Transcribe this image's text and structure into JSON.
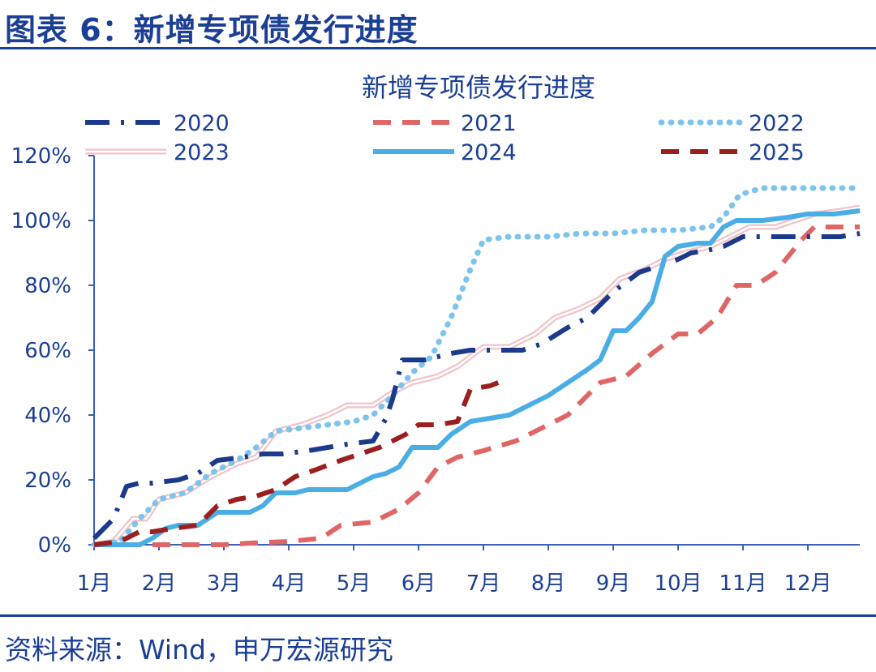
{
  "figure": {
    "title": "图表 6：新增专项债发行进度",
    "source": "资料来源：Wind，申万宏源研究"
  },
  "chart_data": {
    "type": "line",
    "title": "新增专项债发行进度",
    "xlabel": "",
    "ylabel": "",
    "x_ticks": [
      "1月",
      "2月",
      "3月",
      "4月",
      "5月",
      "6月",
      "7月",
      "8月",
      "9月",
      "10月",
      "11月",
      "12月"
    ],
    "xlim": [
      1,
      12.8
    ],
    "y_ticks": [
      "0%",
      "20%",
      "40%",
      "60%",
      "80%",
      "100%",
      "120%"
    ],
    "ylim": [
      0,
      120
    ],
    "grid": false,
    "legend_position": "top",
    "series": [
      {
        "name": "2020",
        "color": "#1b3a8c",
        "style": "dashdot",
        "points": [
          [
            1.0,
            2
          ],
          [
            1.3,
            8
          ],
          [
            1.5,
            18
          ],
          [
            1.7,
            19
          ],
          [
            1.9,
            19
          ],
          [
            2.3,
            20
          ],
          [
            2.6,
            22
          ],
          [
            2.9,
            26
          ],
          [
            3.3,
            27
          ],
          [
            3.6,
            28
          ],
          [
            3.9,
            28
          ],
          [
            4.3,
            29
          ],
          [
            4.6,
            30
          ],
          [
            4.9,
            31
          ],
          [
            5.3,
            32
          ],
          [
            5.5,
            39
          ],
          [
            5.6,
            45
          ],
          [
            5.75,
            57
          ],
          [
            6.1,
            57
          ],
          [
            6.5,
            59
          ],
          [
            6.8,
            60
          ],
          [
            7.2,
            60
          ],
          [
            7.6,
            60
          ],
          [
            7.9,
            62
          ],
          [
            8.3,
            67
          ],
          [
            8.6,
            70
          ],
          [
            9.0,
            78
          ],
          [
            9.4,
            84
          ],
          [
            9.7,
            86
          ],
          [
            10.0,
            88
          ],
          [
            10.2,
            90
          ],
          [
            10.5,
            91
          ],
          [
            10.7,
            92
          ],
          [
            11.0,
            95
          ],
          [
            11.3,
            95
          ],
          [
            11.6,
            95
          ],
          [
            11.9,
            95
          ],
          [
            12.2,
            95
          ],
          [
            12.5,
            95
          ],
          [
            12.8,
            96
          ]
        ]
      },
      {
        "name": "2021",
        "color": "#e06666",
        "style": "dashed",
        "points": [
          [
            1.0,
            0
          ],
          [
            2.0,
            0
          ],
          [
            3.0,
            0
          ],
          [
            3.4,
            0.5
          ],
          [
            4.0,
            1
          ],
          [
            4.5,
            2
          ],
          [
            4.8,
            6
          ],
          [
            5.3,
            7
          ],
          [
            5.7,
            11
          ],
          [
            6.0,
            16
          ],
          [
            6.3,
            24
          ],
          [
            6.6,
            27
          ],
          [
            7.0,
            29
          ],
          [
            7.5,
            32
          ],
          [
            7.9,
            36
          ],
          [
            8.3,
            40
          ],
          [
            8.8,
            50
          ],
          [
            9.2,
            52
          ],
          [
            9.6,
            59
          ],
          [
            10.0,
            65
          ],
          [
            10.3,
            65
          ],
          [
            10.6,
            70
          ],
          [
            10.9,
            80
          ],
          [
            11.2,
            80
          ],
          [
            11.5,
            84
          ],
          [
            11.9,
            94
          ],
          [
            12.1,
            98
          ],
          [
            12.8,
            98
          ]
        ]
      },
      {
        "name": "2022",
        "color": "#7cc4ec",
        "style": "dotted",
        "points": [
          [
            1.0,
            0
          ],
          [
            1.4,
            1
          ],
          [
            1.7,
            8
          ],
          [
            2.0,
            14
          ],
          [
            2.4,
            16
          ],
          [
            2.8,
            22
          ],
          [
            3.2,
            26
          ],
          [
            3.5,
            30
          ],
          [
            3.8,
            35
          ],
          [
            4.2,
            36
          ],
          [
            4.6,
            37
          ],
          [
            5.0,
            38
          ],
          [
            5.3,
            40
          ],
          [
            5.6,
            46
          ],
          [
            5.9,
            53
          ],
          [
            6.2,
            58
          ],
          [
            6.5,
            70
          ],
          [
            6.8,
            85
          ],
          [
            7.0,
            94
          ],
          [
            7.4,
            95
          ],
          [
            8.0,
            95
          ],
          [
            8.5,
            96
          ],
          [
            9.0,
            96
          ],
          [
            9.5,
            97
          ],
          [
            10.0,
            97
          ],
          [
            10.5,
            98
          ],
          [
            10.7,
            101
          ],
          [
            10.95,
            108
          ],
          [
            11.3,
            110
          ],
          [
            12.0,
            110
          ],
          [
            12.8,
            110
          ]
        ]
      },
      {
        "name": "2023",
        "color": "#f2c3c8",
        "style": "double",
        "points": [
          [
            1.0,
            0
          ],
          [
            1.3,
            1
          ],
          [
            1.6,
            8
          ],
          [
            1.8,
            8
          ],
          [
            2.0,
            14
          ],
          [
            2.4,
            16
          ],
          [
            2.8,
            21
          ],
          [
            3.2,
            25
          ],
          [
            3.5,
            27
          ],
          [
            3.8,
            35
          ],
          [
            4.2,
            37
          ],
          [
            4.6,
            40
          ],
          [
            4.9,
            43
          ],
          [
            5.3,
            43
          ],
          [
            5.6,
            47
          ],
          [
            5.9,
            50
          ],
          [
            6.3,
            52
          ],
          [
            6.6,
            55
          ],
          [
            7.0,
            61
          ],
          [
            7.4,
            61
          ],
          [
            7.8,
            65
          ],
          [
            8.1,
            70
          ],
          [
            8.5,
            73
          ],
          [
            8.8,
            76
          ],
          [
            9.1,
            82
          ],
          [
            9.5,
            85
          ],
          [
            9.8,
            88
          ],
          [
            10.1,
            90
          ],
          [
            10.5,
            92
          ],
          [
            10.8,
            95
          ],
          [
            11.1,
            98
          ],
          [
            11.5,
            98
          ],
          [
            11.8,
            100
          ],
          [
            12.1,
            102
          ],
          [
            12.5,
            103
          ],
          [
            12.8,
            104
          ]
        ]
      },
      {
        "name": "2024",
        "color": "#4aaee6",
        "style": "solid",
        "points": [
          [
            1.0,
            0
          ],
          [
            1.7,
            0
          ],
          [
            1.9,
            2
          ],
          [
            2.1,
            5
          ],
          [
            2.3,
            6
          ],
          [
            2.6,
            6
          ],
          [
            2.9,
            10
          ],
          [
            3.1,
            10
          ],
          [
            3.4,
            10
          ],
          [
            3.6,
            12
          ],
          [
            3.8,
            16
          ],
          [
            4.1,
            16
          ],
          [
            4.3,
            17
          ],
          [
            4.6,
            17
          ],
          [
            4.9,
            17
          ],
          [
            5.1,
            19
          ],
          [
            5.3,
            21
          ],
          [
            5.5,
            22
          ],
          [
            5.7,
            24
          ],
          [
            5.9,
            30
          ],
          [
            6.1,
            30
          ],
          [
            6.3,
            30
          ],
          [
            6.5,
            34
          ],
          [
            6.8,
            38
          ],
          [
            7.1,
            39
          ],
          [
            7.4,
            40
          ],
          [
            7.7,
            43
          ],
          [
            8.0,
            46
          ],
          [
            8.3,
            50
          ],
          [
            8.6,
            54
          ],
          [
            8.8,
            57
          ],
          [
            9.0,
            66
          ],
          [
            9.2,
            66
          ],
          [
            9.4,
            70
          ],
          [
            9.6,
            75
          ],
          [
            9.8,
            89
          ],
          [
            10.0,
            92
          ],
          [
            10.3,
            93
          ],
          [
            10.5,
            93
          ],
          [
            10.7,
            98
          ],
          [
            10.9,
            100
          ],
          [
            11.3,
            100
          ],
          [
            11.7,
            101
          ],
          [
            12.0,
            102
          ],
          [
            12.4,
            102
          ],
          [
            12.8,
            103
          ]
        ]
      },
      {
        "name": "2025",
        "color": "#9c1f1f",
        "style": "dashed",
        "points": [
          [
            1.0,
            0
          ],
          [
            1.4,
            1
          ],
          [
            1.7,
            4
          ],
          [
            1.9,
            4
          ],
          [
            2.2,
            5
          ],
          [
            2.6,
            6
          ],
          [
            2.9,
            12
          ],
          [
            3.2,
            14
          ],
          [
            3.5,
            15
          ],
          [
            3.8,
            17
          ],
          [
            4.1,
            21
          ],
          [
            4.4,
            23
          ],
          [
            4.8,
            26
          ],
          [
            5.1,
            28
          ],
          [
            5.4,
            30
          ],
          [
            5.8,
            34
          ],
          [
            6.0,
            37
          ],
          [
            6.3,
            37
          ],
          [
            6.6,
            38
          ],
          [
            6.8,
            48
          ],
          [
            7.1,
            49
          ],
          [
            7.35,
            51
          ]
        ]
      }
    ]
  }
}
